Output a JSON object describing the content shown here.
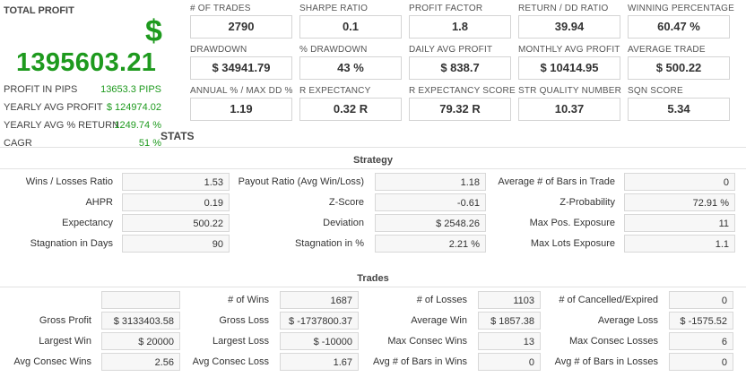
{
  "profit": {
    "title": "TOTAL PROFIT",
    "currency_symbol": "$",
    "value": "1395603.21",
    "stats": [
      {
        "label": "PROFIT IN PIPS",
        "value": "13653.3 PIPS"
      },
      {
        "label": "YEARLY AVG PROFIT",
        "value": "$ 124974.02"
      },
      {
        "label": "YEARLY AVG % RETURN",
        "value": "1249.74 %"
      },
      {
        "label": "CAGR",
        "value": "51 %"
      }
    ]
  },
  "metrics": [
    {
      "label": "# OF TRADES",
      "value": "2790"
    },
    {
      "label": "SHARPE RATIO",
      "value": "0.1"
    },
    {
      "label": "PROFIT FACTOR",
      "value": "1.8"
    },
    {
      "label": "RETURN / DD RATIO",
      "value": "39.94"
    },
    {
      "label": "WINNING PERCENTAGE",
      "value": "60.47 %"
    },
    {
      "label": "DRAWDOWN",
      "value": "$ 34941.79"
    },
    {
      "label": "% DRAWDOWN",
      "value": "43 %"
    },
    {
      "label": "DAILY AVG PROFIT",
      "value": "$ 838.7"
    },
    {
      "label": "MONTHLY AVG PROFIT",
      "value": "$ 10414.95"
    },
    {
      "label": "AVERAGE TRADE",
      "value": "$ 500.22"
    },
    {
      "label": "ANNUAL % / MAX DD %",
      "value": "1.19"
    },
    {
      "label": "R EXPECTANCY",
      "value": "0.32 R"
    },
    {
      "label": "R EXPECTANCY SCORE",
      "value": "79.32 R"
    },
    {
      "label": "STR QUALITY NUMBER",
      "value": "10.37"
    },
    {
      "label": "SQN SCORE",
      "value": "5.34"
    }
  ],
  "stats_title": "STATS",
  "strategy": {
    "title": "Strategy",
    "rows": [
      [
        {
          "label": "Wins / Losses Ratio",
          "value": "1.53"
        },
        {
          "label": "Payout Ratio (Avg Win/Loss)",
          "value": "1.18"
        },
        {
          "label": "Average # of Bars in Trade",
          "value": "0"
        }
      ],
      [
        {
          "label": "AHPR",
          "value": "0.19"
        },
        {
          "label": "Z-Score",
          "value": "-0.61"
        },
        {
          "label": "Z-Probability",
          "value": "72.91 %"
        }
      ],
      [
        {
          "label": "Expectancy",
          "value": "500.22"
        },
        {
          "label": "Deviation",
          "value": "$ 2548.26"
        },
        {
          "label": "Max Pos. Exposure",
          "value": "11"
        }
      ],
      [
        {
          "label": "Stagnation in Days",
          "value": "90"
        },
        {
          "label": "Stagnation in %",
          "value": "2.21 %"
        },
        {
          "label": "Max Lots Exposure",
          "value": "1.1"
        }
      ]
    ]
  },
  "trades": {
    "title": "Trades",
    "rows": [
      [
        {
          "label": "",
          "value": ""
        },
        {
          "label": "# of Wins",
          "value": "1687"
        },
        {
          "label": "# of Losses",
          "value": "1103"
        },
        {
          "label": "# of Cancelled/Expired",
          "value": "0"
        }
      ],
      [
        {
          "label": "Gross Profit",
          "value": "$ 3133403.58"
        },
        {
          "label": "Gross Loss",
          "value": "$ -1737800.37"
        },
        {
          "label": "Average Win",
          "value": "$ 1857.38"
        },
        {
          "label": "Average Loss",
          "value": "$ -1575.52"
        }
      ],
      [
        {
          "label": "Largest Win",
          "value": "$ 20000"
        },
        {
          "label": "Largest Loss",
          "value": "$ -10000"
        },
        {
          "label": "Max Consec Wins",
          "value": "13"
        },
        {
          "label": "Max Consec Losses",
          "value": "6"
        }
      ],
      [
        {
          "label": "Avg Consec Wins",
          "value": "2.56"
        },
        {
          "label": "Avg Consec Loss",
          "value": "1.67"
        },
        {
          "label": "Avg # of Bars in Wins",
          "value": "0"
        },
        {
          "label": "Avg # of Bars in Losses",
          "value": "0"
        }
      ]
    ]
  }
}
